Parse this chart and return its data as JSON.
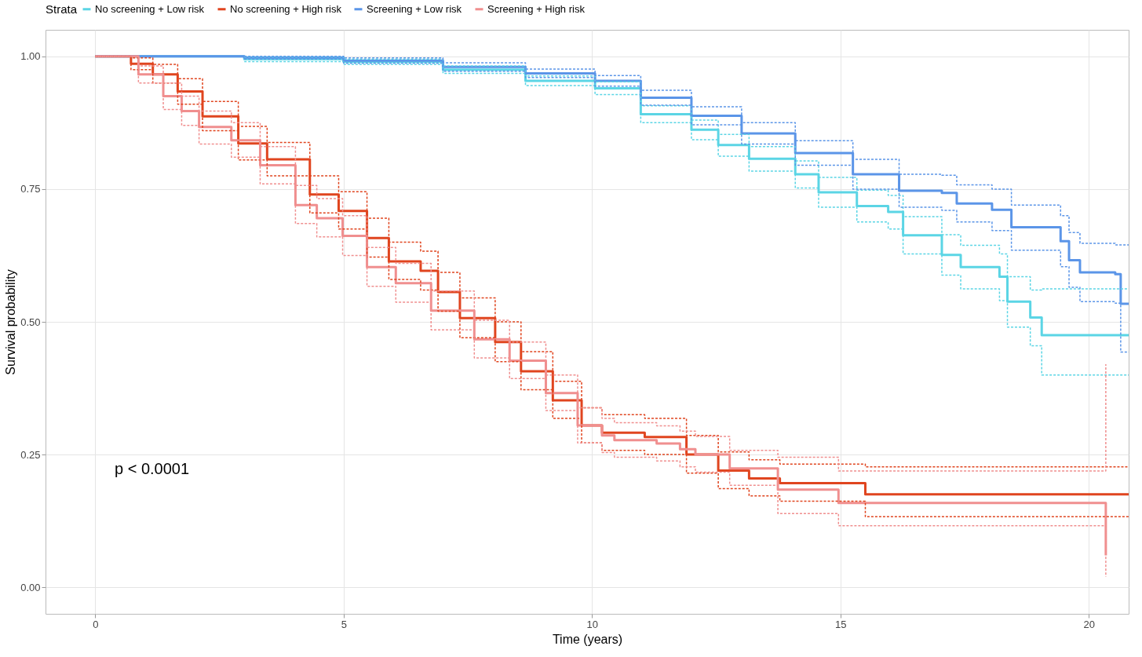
{
  "chart_data": {
    "type": "step",
    "xlabel": "Time (years)",
    "ylabel": "Survival probability",
    "legend_title": "Strata",
    "legend": "top",
    "xlim": [
      -1,
      20.8
    ],
    "ylim": [
      -0.05,
      1.05
    ],
    "xticks": [
      0,
      5,
      10,
      15,
      20
    ],
    "yticks": [
      {
        "value": 0,
        "label": "0.00"
      },
      {
        "value": 0.25,
        "label": "0.25"
      },
      {
        "value": 0.5,
        "label": "0.50"
      },
      {
        "value": 0.75,
        "label": "0.75"
      },
      {
        "value": 1,
        "label": "1.00"
      }
    ],
    "grid": true,
    "line_style": "solid",
    "annotations": [
      "p < 0.0001"
    ],
    "series": [
      {
        "name": "No screening + Low risk",
        "color": "#5bd5e5",
        "x": [
          0,
          3,
          5,
          7,
          8.66,
          10.06,
          10.98,
          12.0,
          12.54,
          13.16,
          14.09,
          14.56,
          15.33,
          15.96,
          16.26,
          17.04,
          17.42,
          18.2,
          18.36,
          18.82,
          19.05,
          20.8
        ],
        "values": [
          1.0,
          0.995,
          0.99,
          0.975,
          0.954,
          0.94,
          0.891,
          0.862,
          0.833,
          0.807,
          0.778,
          0.744,
          0.718,
          0.707,
          0.663,
          0.626,
          0.603,
          0.585,
          0.538,
          0.508,
          0.475,
          0.475
        ]
      },
      {
        "name": "No screening + High risk",
        "color": "#e0451f",
        "x": [
          0,
          0.72,
          1.16,
          1.66,
          2.16,
          2.88,
          3.46,
          4.32,
          4.9,
          5.47,
          5.91,
          6.55,
          6.9,
          7.34,
          8.05,
          8.57,
          9.21,
          9.79,
          10.2,
          11.06,
          11.9,
          12.54,
          13.16,
          13.78,
          15.5,
          20.8
        ],
        "values": [
          1.0,
          0.986,
          0.966,
          0.934,
          0.887,
          0.836,
          0.806,
          0.74,
          0.709,
          0.658,
          0.614,
          0.596,
          0.556,
          0.507,
          0.462,
          0.407,
          0.352,
          0.305,
          0.291,
          0.283,
          0.25,
          0.22,
          0.205,
          0.196,
          0.175,
          0.175
        ]
      },
      {
        "name": "Screening + Low risk",
        "color": "#5b95e8",
        "x": [
          0,
          3,
          5,
          7,
          8.66,
          10.06,
          10.98,
          12,
          13.01,
          14.09,
          15.25,
          16.18,
          17.04,
          17.34,
          18.05,
          18.44,
          19.43,
          19.6,
          19.82,
          20.53,
          20.64,
          20.8
        ],
        "values": [
          1.0,
          0.998,
          0.992,
          0.98,
          0.968,
          0.954,
          0.922,
          0.888,
          0.855,
          0.818,
          0.778,
          0.747,
          0.743,
          0.723,
          0.711,
          0.678,
          0.652,
          0.616,
          0.593,
          0.59,
          0.534,
          0.534
        ]
      },
      {
        "name": "Screening + High risk",
        "color": "#f08f8f",
        "x": [
          0,
          0.87,
          1.37,
          1.74,
          2.09,
          2.74,
          3.32,
          4.03,
          4.46,
          4.98,
          5.47,
          6.05,
          6.76,
          7.63,
          8.34,
          9.07,
          9.71,
          10.2,
          10.45,
          11.3,
          11.77,
          12.08,
          12.77,
          13.74,
          14.96,
          20.34
        ],
        "values": [
          1.0,
          0.966,
          0.925,
          0.897,
          0.867,
          0.842,
          0.795,
          0.72,
          0.695,
          0.662,
          0.603,
          0.573,
          0.521,
          0.467,
          0.427,
          0.366,
          0.305,
          0.286,
          0.277,
          0.271,
          0.26,
          0.25,
          0.224,
          0.184,
          0.159,
          0.06
        ]
      },
      {
        "color": "#5bd5e5",
        "line_style": "dashed",
        "x": [
          3,
          5,
          7,
          8.66,
          10.06,
          10.98,
          12.0,
          12.54,
          13.16,
          14.09,
          14.56,
          15.33,
          15.96,
          16.26,
          17.04,
          17.42,
          18.2,
          18.36,
          18.82,
          19.05,
          20.8
        ],
        "values": [
          0.99,
          0.985,
          0.968,
          0.945,
          0.928,
          0.875,
          0.843,
          0.812,
          0.784,
          0.752,
          0.716,
          0.688,
          0.675,
          0.628,
          0.588,
          0.562,
          0.54,
          0.49,
          0.455,
          0.4,
          0.4
        ]
      },
      {
        "color": "#5bd5e5",
        "line_style": "dashed",
        "x": [
          3,
          5,
          7,
          8.66,
          10.06,
          10.98,
          12.0,
          12.54,
          13.16,
          14.09,
          14.56,
          15.33,
          15.96,
          16.26,
          17.04,
          17.42,
          18.2,
          18.36,
          18.82,
          19.05,
          20.8
        ],
        "values": [
          0.999,
          0.995,
          0.982,
          0.963,
          0.952,
          0.907,
          0.88,
          0.853,
          0.83,
          0.803,
          0.772,
          0.748,
          0.738,
          0.698,
          0.664,
          0.644,
          0.628,
          0.585,
          0.56,
          0.562,
          0.562
        ]
      },
      {
        "color": "#e0451f",
        "line_style": "dashed",
        "x": [
          0,
          0.72,
          1.16,
          1.66,
          2.16,
          2.88,
          3.46,
          4.32,
          4.9,
          5.47,
          5.91,
          6.55,
          6.9,
          7.34,
          8.05,
          8.57,
          9.21,
          9.79,
          10.2,
          11.06,
          11.9,
          12.54,
          13.16,
          13.78,
          15.5,
          20.8
        ],
        "values": [
          1.0,
          0.975,
          0.95,
          0.91,
          0.86,
          0.805,
          0.775,
          0.705,
          0.675,
          0.622,
          0.58,
          0.56,
          0.52,
          0.47,
          0.425,
          0.372,
          0.318,
          0.272,
          0.258,
          0.25,
          0.215,
          0.186,
          0.172,
          0.162,
          0.133,
          0.133
        ]
      },
      {
        "color": "#e0451f",
        "line_style": "dashed",
        "x": [
          0,
          0.72,
          1.16,
          1.66,
          2.16,
          2.88,
          3.46,
          4.32,
          4.9,
          5.47,
          5.91,
          6.55,
          6.9,
          7.34,
          8.05,
          8.57,
          9.21,
          9.79,
          10.2,
          11.06,
          11.9,
          12.54,
          13.16,
          13.78,
          15.5,
          20.8
        ],
        "values": [
          1.0,
          0.997,
          0.985,
          0.958,
          0.915,
          0.868,
          0.838,
          0.775,
          0.745,
          0.695,
          0.65,
          0.633,
          0.593,
          0.545,
          0.5,
          0.444,
          0.388,
          0.338,
          0.325,
          0.318,
          0.286,
          0.255,
          0.24,
          0.232,
          0.227,
          0.227
        ]
      },
      {
        "color": "#5b95e8",
        "line_style": "dashed",
        "x": [
          3,
          5,
          7,
          8.66,
          10.06,
          10.98,
          12,
          13.01,
          14.09,
          15.25,
          16.18,
          17.04,
          17.34,
          18.05,
          18.44,
          19.43,
          19.6,
          19.82,
          20.53,
          20.64,
          20.8
        ],
        "values": [
          0.995,
          0.987,
          0.972,
          0.96,
          0.944,
          0.908,
          0.871,
          0.835,
          0.795,
          0.75,
          0.716,
          0.71,
          0.688,
          0.672,
          0.635,
          0.604,
          0.565,
          0.538,
          0.535,
          0.443,
          0.443
        ]
      },
      {
        "color": "#5b95e8",
        "line_style": "dashed",
        "x": [
          3,
          5,
          7,
          8.66,
          10.06,
          10.98,
          12,
          13.01,
          14.09,
          15.25,
          16.18,
          17.04,
          17.34,
          18.05,
          18.44,
          19.43,
          19.6,
          19.82,
          20.53,
          20.64,
          20.8
        ],
        "values": [
          1.0,
          0.997,
          0.988,
          0.976,
          0.964,
          0.936,
          0.905,
          0.875,
          0.841,
          0.806,
          0.778,
          0.776,
          0.758,
          0.75,
          0.72,
          0.7,
          0.668,
          0.648,
          0.645,
          0.645,
          0.645
        ]
      },
      {
        "color": "#f08f8f",
        "line_style": "dashed",
        "x": [
          0,
          0.87,
          1.37,
          1.74,
          2.09,
          2.74,
          3.32,
          4.03,
          4.46,
          4.98,
          5.47,
          6.05,
          6.76,
          7.63,
          8.34,
          9.07,
          9.71,
          10.2,
          10.45,
          11.3,
          11.77,
          12.08,
          12.77,
          13.74,
          14.96,
          20.34
        ],
        "values": [
          1.0,
          0.95,
          0.9,
          0.87,
          0.835,
          0.81,
          0.76,
          0.685,
          0.66,
          0.625,
          0.567,
          0.537,
          0.485,
          0.432,
          0.393,
          0.333,
          0.272,
          0.254,
          0.245,
          0.238,
          0.227,
          0.217,
          0.192,
          0.139,
          0.116,
          0.02
        ]
      },
      {
        "color": "#f08f8f",
        "line_style": "dashed",
        "x": [
          0,
          0.87,
          1.37,
          1.74,
          2.09,
          2.74,
          3.32,
          4.03,
          4.46,
          4.98,
          5.47,
          6.05,
          6.76,
          7.63,
          8.34,
          9.07,
          9.71,
          10.2,
          10.45,
          11.3,
          11.77,
          12.08,
          12.77,
          13.74,
          14.96,
          20.34
        ],
        "values": [
          1.0,
          0.982,
          0.95,
          0.925,
          0.897,
          0.875,
          0.83,
          0.757,
          0.732,
          0.7,
          0.64,
          0.61,
          0.558,
          0.503,
          0.462,
          0.4,
          0.338,
          0.318,
          0.31,
          0.304,
          0.294,
          0.284,
          0.258,
          0.245,
          0.219,
          0.42
        ]
      }
    ]
  }
}
